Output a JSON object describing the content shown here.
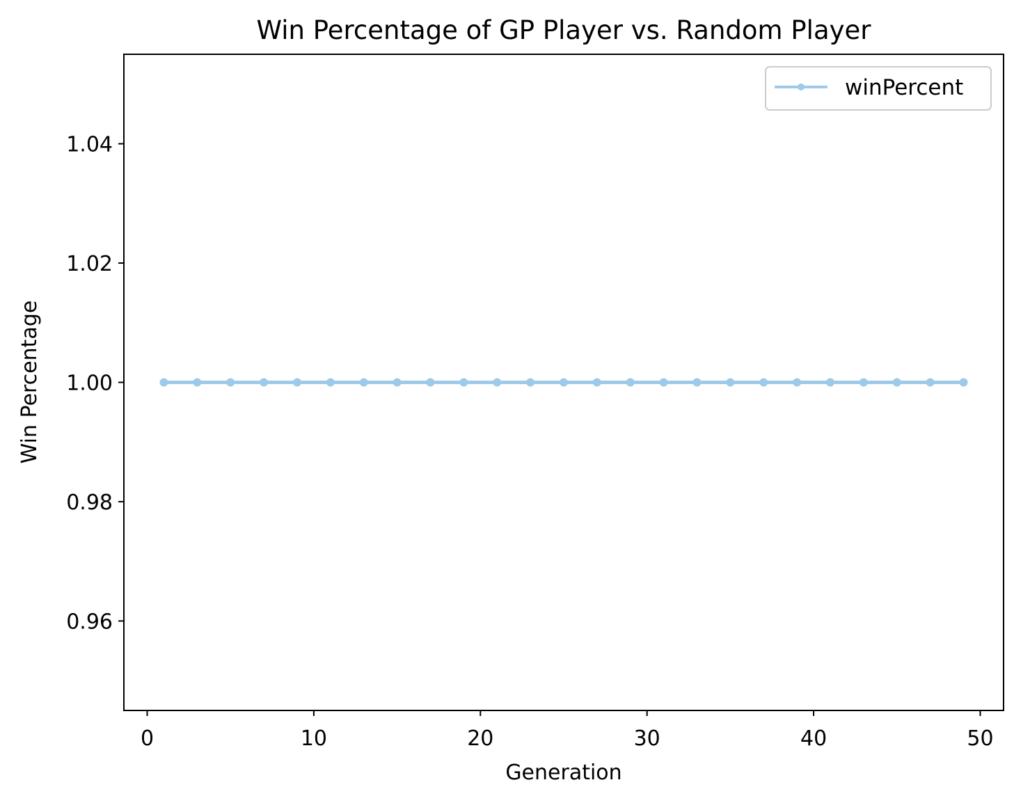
{
  "chart_data": {
    "type": "line",
    "title": "Win Percentage of GP Player vs. Random Player",
    "xlabel": "Generation",
    "ylabel": "Win Percentage",
    "xlim": [
      -1.4,
      51.4
    ],
    "ylim": [
      0.945,
      1.055
    ],
    "xticks": [
      0,
      10,
      20,
      30,
      40,
      50
    ],
    "yticks": [
      0.96,
      0.98,
      1.0,
      1.02,
      1.04
    ],
    "xtick_labels": [
      "0",
      "10",
      "20",
      "30",
      "40",
      "50"
    ],
    "ytick_labels": [
      "0.96",
      "0.98",
      "1.00",
      "1.02",
      "1.04"
    ],
    "grid": false,
    "legend_position": "top-right",
    "series": [
      {
        "name": "winPercent",
        "color": "#9ecae9",
        "marker": "circle",
        "x": [
          1,
          3,
          5,
          7,
          9,
          11,
          13,
          15,
          17,
          19,
          21,
          23,
          25,
          27,
          29,
          31,
          33,
          35,
          37,
          39,
          41,
          43,
          45,
          47,
          49
        ],
        "y": [
          1.0,
          1.0,
          1.0,
          1.0,
          1.0,
          1.0,
          1.0,
          1.0,
          1.0,
          1.0,
          1.0,
          1.0,
          1.0,
          1.0,
          1.0,
          1.0,
          1.0,
          1.0,
          1.0,
          1.0,
          1.0,
          1.0,
          1.0,
          1.0,
          1.0
        ]
      }
    ]
  }
}
